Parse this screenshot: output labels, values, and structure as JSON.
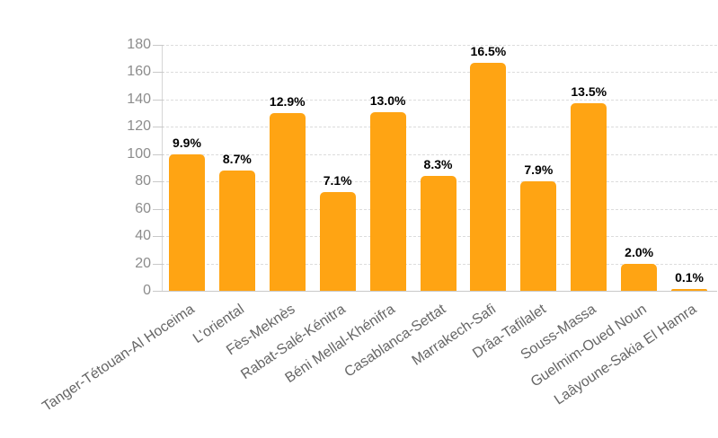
{
  "chart_data": {
    "type": "bar",
    "title": "",
    "xlabel": "",
    "ylabel": "",
    "categories": [
      "Tanger-Tétouan-Al Hoceima",
      "L'oriental",
      "Fès-Meknès",
      "Rabat-Salé-Kénitra",
      "Béni Mellal-Khénifra",
      "Casablanca-Settat",
      "Marrakech-Safi",
      "Drâa-Tafilalet",
      "Souss-Massa",
      "Guelmim-Oued Noun",
      "Laâyoune-Sakia El Hamra"
    ],
    "values": [
      100,
      88,
      130,
      72,
      131,
      84,
      167,
      80,
      137,
      20,
      1
    ],
    "value_labels": [
      "9.9%",
      "8.7%",
      "12.9%",
      "7.1%",
      "13.0%",
      "8.3%",
      "16.5%",
      "7.9%",
      "13.5%",
      "2.0%",
      "0.1%"
    ],
    "ylim": [
      0,
      180
    ],
    "ytick_step": 20,
    "yticks": [
      0,
      20,
      40,
      60,
      80,
      100,
      120,
      140,
      160,
      180
    ],
    "grid": "horizontal-dashed",
    "legend": "none",
    "colors": {
      "bar": "#FFA413",
      "value_label": "#000000",
      "y_tick_label": "#8c8c8c",
      "x_category_label": "#666666",
      "gridline": "#dcdcdc",
      "axis_line": "#c9c9c9"
    }
  }
}
